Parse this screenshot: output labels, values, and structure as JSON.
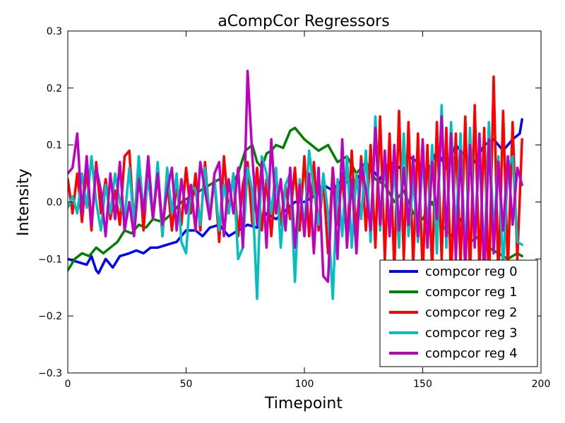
{
  "chart_data": {
    "type": "line",
    "title": "aCompCor Regressors",
    "xlabel": "Timepoint",
    "ylabel": "Intensity",
    "xlim": [
      0,
      200
    ],
    "ylim": [
      -0.3,
      0.3
    ],
    "xticks": [
      0,
      50,
      100,
      150,
      200
    ],
    "xtick_labels": [
      "0",
      "50",
      "100",
      "150",
      "200"
    ],
    "yticks": [
      -0.3,
      -0.2,
      -0.1,
      0.0,
      0.1,
      0.2,
      0.3
    ],
    "ytick_labels": [
      "−0.3",
      "−0.2",
      "−0.1",
      "0.0",
      "0.1",
      "0.2",
      "0.3"
    ],
    "grid": false,
    "legend_position": "lower-right",
    "series": [
      {
        "name": "compcor reg 0",
        "color": "#0000ff",
        "x": [
          0,
          4,
          8,
          10,
          12,
          13,
          16,
          19,
          22,
          26,
          29,
          32,
          35,
          38,
          42,
          46,
          50,
          54,
          57,
          60,
          64,
          68,
          72,
          76,
          80,
          84,
          88,
          92,
          96,
          100,
          104,
          108,
          112,
          116,
          120,
          124,
          128,
          132,
          136,
          140,
          144,
          148,
          152,
          156,
          160,
          164,
          168,
          172,
          176,
          180,
          184,
          188,
          191,
          192
        ],
        "y": [
          -0.1,
          -0.105,
          -0.11,
          -0.095,
          -0.12,
          -0.125,
          -0.1,
          -0.115,
          -0.095,
          -0.09,
          -0.085,
          -0.09,
          -0.08,
          -0.08,
          -0.075,
          -0.07,
          -0.05,
          -0.05,
          -0.06,
          -0.045,
          -0.04,
          -0.06,
          -0.05,
          -0.04,
          -0.045,
          -0.02,
          -0.03,
          -0.015,
          0.0,
          0.0,
          0.01,
          0.03,
          0.02,
          0.04,
          0.03,
          0.05,
          0.06,
          0.04,
          0.07,
          0.06,
          0.08,
          0.07,
          0.05,
          0.09,
          0.06,
          0.1,
          0.08,
          0.07,
          0.1,
          0.11,
          0.09,
          0.11,
          0.12,
          0.145
        ]
      },
      {
        "name": "compcor reg 1",
        "color": "#008000",
        "x": [
          0,
          3,
          6,
          9,
          12,
          15,
          18,
          21,
          24,
          27,
          30,
          33,
          36,
          40,
          44,
          48,
          52,
          56,
          60,
          64,
          68,
          72,
          75,
          78,
          80,
          82,
          84,
          86,
          88,
          91,
          94,
          96,
          98,
          100,
          103,
          106,
          110,
          114,
          118,
          122,
          126,
          130,
          134,
          138,
          142,
          146,
          150,
          154,
          158,
          162,
          166,
          170,
          174,
          178,
          182,
          186,
          190,
          192
        ],
        "y": [
          -0.12,
          -0.1,
          -0.09,
          -0.095,
          -0.08,
          -0.09,
          -0.08,
          -0.07,
          -0.05,
          -0.055,
          -0.04,
          -0.045,
          -0.03,
          -0.035,
          -0.02,
          0.0,
          0.01,
          0.02,
          0.03,
          0.04,
          0.02,
          0.05,
          0.09,
          0.1,
          0.07,
          0.06,
          0.085,
          0.09,
          0.1,
          0.095,
          0.125,
          0.13,
          0.12,
          0.11,
          0.1,
          0.09,
          0.1,
          0.07,
          0.08,
          0.05,
          0.07,
          0.04,
          0.03,
          0.0,
          0.02,
          -0.02,
          -0.03,
          0.0,
          -0.04,
          -0.06,
          -0.03,
          -0.07,
          -0.06,
          -0.08,
          -0.09,
          -0.1,
          -0.09,
          -0.095
        ]
      },
      {
        "name": "compcor reg 2",
        "color": "#ff0000",
        "x": [
          0,
          2,
          4,
          6,
          8,
          10,
          12,
          14,
          16,
          18,
          20,
          22,
          24,
          26,
          28,
          30,
          32,
          34,
          36,
          38,
          40,
          42,
          44,
          46,
          48,
          50,
          52,
          54,
          56,
          58,
          60,
          62,
          64,
          66,
          68,
          70,
          72,
          74,
          76,
          78,
          80,
          82,
          84,
          86,
          88,
          90,
          92,
          94,
          96,
          98,
          100,
          102,
          104,
          106,
          108,
          110,
          112,
          114,
          116,
          118,
          120,
          122,
          124,
          126,
          128,
          130,
          132,
          134,
          136,
          138,
          140,
          142,
          144,
          146,
          148,
          150,
          152,
          154,
          156,
          158,
          160,
          162,
          164,
          166,
          168,
          170,
          172,
          174,
          176,
          178,
          180,
          182,
          184,
          186,
          188,
          190,
          192
        ],
        "y": [
          0.04,
          -0.02,
          0.05,
          -0.035,
          0.06,
          -0.05,
          0.07,
          -0.02,
          0.04,
          -0.03,
          0.02,
          -0.04,
          0.08,
          0.09,
          -0.04,
          0.07,
          -0.05,
          0.06,
          -0.03,
          0.05,
          -0.06,
          0.04,
          -0.05,
          0.03,
          -0.04,
          0.06,
          -0.02,
          0.05,
          -0.05,
          0.07,
          -0.03,
          0.04,
          -0.07,
          0.08,
          -0.02,
          0.05,
          -0.06,
          0.03,
          0.07,
          -0.04,
          0.06,
          -0.05,
          0.04,
          -0.06,
          0.05,
          -0.04,
          0.03,
          -0.03,
          0.06,
          -0.05,
          0.08,
          -0.06,
          0.07,
          -0.05,
          0.04,
          -0.09,
          0.06,
          -0.04,
          0.05,
          -0.07,
          0.09,
          -0.06,
          0.08,
          -0.05,
          0.1,
          -0.08,
          0.15,
          -0.1,
          0.12,
          -0.12,
          0.16,
          -0.1,
          0.14,
          -0.11,
          0.12,
          -0.13,
          0.1,
          -0.12,
          0.14,
          -0.1,
          0.13,
          -0.14,
          0.12,
          -0.11,
          0.15,
          -0.13,
          0.17,
          -0.12,
          0.13,
          -0.15,
          0.22,
          -0.14,
          0.16,
          -0.12,
          0.14,
          -0.1,
          0.11
        ]
      },
      {
        "name": "compcor reg 3",
        "color": "#00bfbf",
        "x": [
          0,
          2,
          4,
          6,
          8,
          10,
          12,
          14,
          16,
          18,
          20,
          22,
          24,
          26,
          28,
          30,
          32,
          34,
          36,
          38,
          40,
          42,
          44,
          46,
          48,
          50,
          52,
          54,
          56,
          58,
          60,
          62,
          64,
          66,
          68,
          70,
          72,
          74,
          76,
          78,
          80,
          82,
          84,
          86,
          88,
          90,
          92,
          94,
          96,
          98,
          100,
          102,
          104,
          106,
          108,
          110,
          112,
          114,
          116,
          118,
          120,
          122,
          124,
          126,
          128,
          130,
          132,
          134,
          136,
          138,
          140,
          142,
          144,
          146,
          148,
          150,
          152,
          154,
          156,
          158,
          160,
          162,
          164,
          166,
          168,
          170,
          172,
          174,
          176,
          178,
          180,
          182,
          184,
          186,
          188,
          190,
          192
        ],
        "y": [
          -0.01,
          0.01,
          -0.02,
          0.05,
          -0.01,
          0.08,
          0.0,
          -0.05,
          0.03,
          -0.02,
          0.05,
          0.0,
          -0.03,
          0.06,
          -0.04,
          0.08,
          -0.02,
          0.04,
          -0.03,
          0.07,
          -0.06,
          0.06,
          -0.02,
          0.05,
          -0.07,
          -0.09,
          0.03,
          0.02,
          -0.04,
          0.06,
          -0.03,
          0.04,
          -0.05,
          0.03,
          -0.02,
          0.05,
          -0.1,
          -0.08,
          0.06,
          0.02,
          -0.17,
          0.08,
          0.05,
          -0.02,
          0.06,
          -0.08,
          0.03,
          0.05,
          -0.14,
          0.04,
          -0.05,
          0.09,
          0.02,
          -0.04,
          0.05,
          -0.02,
          -0.17,
          0.04,
          -0.06,
          0.08,
          -0.08,
          0.05,
          -0.03,
          0.09,
          -0.07,
          0.15,
          -0.05,
          0.07,
          -0.04,
          0.06,
          -0.08,
          0.12,
          -0.06,
          0.04,
          -0.07,
          0.08,
          -0.05,
          0.1,
          -0.09,
          0.17,
          -0.08,
          0.14,
          -0.06,
          0.12,
          -0.1,
          0.13,
          -0.07,
          0.09,
          -0.1,
          0.14,
          -0.06,
          0.08,
          -0.12,
          0.06,
          0.08,
          -0.07,
          -0.075
        ]
      },
      {
        "name": "compcor reg 4",
        "color": "#bf00bf",
        "x": [
          0,
          2,
          4,
          6,
          8,
          10,
          12,
          14,
          16,
          18,
          20,
          22,
          24,
          26,
          28,
          30,
          32,
          34,
          36,
          38,
          40,
          42,
          44,
          46,
          48,
          50,
          52,
          54,
          56,
          58,
          60,
          62,
          64,
          66,
          68,
          70,
          72,
          74,
          76,
          78,
          80,
          82,
          84,
          86,
          88,
          90,
          92,
          94,
          96,
          98,
          100,
          102,
          104,
          106,
          108,
          110,
          112,
          114,
          116,
          118,
          120,
          122,
          124,
          126,
          128,
          130,
          132,
          134,
          136,
          138,
          140,
          142,
          144,
          146,
          148,
          150,
          152,
          154,
          156,
          158,
          160,
          162,
          164,
          166,
          168,
          170,
          172,
          174,
          176,
          178,
          180,
          182,
          184,
          186,
          188,
          190,
          192
        ],
        "y": [
          0.05,
          0.06,
          0.12,
          -0.02,
          0.08,
          -0.04,
          0.06,
          0.02,
          -0.06,
          0.05,
          -0.03,
          0.07,
          -0.05,
          0.0,
          -0.06,
          0.04,
          -0.02,
          0.08,
          -0.03,
          0.05,
          -0.04,
          0.02,
          0.06,
          -0.05,
          0.04,
          -0.02,
          0.03,
          -0.05,
          0.07,
          0.02,
          -0.03,
          0.05,
          0.07,
          -0.06,
          0.04,
          -0.02,
          0.06,
          -0.08,
          0.23,
          0.08,
          -0.04,
          0.07,
          -0.08,
          0.11,
          -0.02,
          0.04,
          -0.05,
          0.06,
          -0.08,
          0.03,
          -0.06,
          0.05,
          -0.09,
          0.06,
          -0.13,
          -0.14,
          0.06,
          -0.1,
          0.11,
          -0.08,
          0.04,
          -0.09,
          0.07,
          0.02,
          -0.05,
          0.13,
          -0.04,
          0.09,
          -0.06,
          0.1,
          -0.05,
          0.06,
          -0.04,
          0.08,
          -0.06,
          0.11,
          -0.08,
          0.07,
          -0.03,
          0.15,
          -0.06,
          0.12,
          -0.1,
          0.09,
          -0.12,
          0.1,
          -0.08,
          0.12,
          -0.14,
          0.11,
          -0.09,
          0.07,
          -0.05,
          0.08,
          -0.04,
          0.06,
          0.03
        ]
      }
    ]
  }
}
